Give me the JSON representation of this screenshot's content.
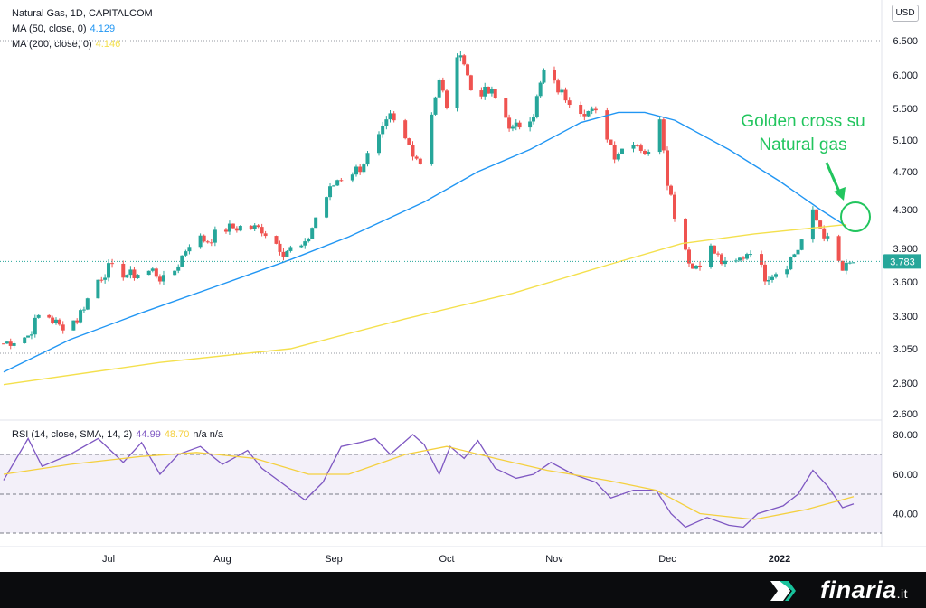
{
  "legend": {
    "title": "Natural Gas, 1D, CAPITALCOM",
    "ma50_label": "MA (50, close, 0)",
    "ma50_value": "4.129",
    "ma200_label": "MA (200, close, 0)",
    "ma200_value": "4.146",
    "rsi_label": "RSI (14, close, SMA, 14, 2)",
    "rsi_value": "44.99",
    "rsi_sma_value": "48.70",
    "rsi_extra": "n/a  n/a"
  },
  "currency": "USD",
  "brand": {
    "name": "finaria",
    "tld": ".it"
  },
  "colors": {
    "up": "#26a69a",
    "down": "#ef5350",
    "ma50": "#2196f3",
    "ma200": "#f4e04d",
    "rsi": "#7e57c2",
    "rsi_sma": "#f4d03f",
    "annotation": "#22c55e"
  },
  "annotation": {
    "line1": "Golden cross su",
    "line2": "Natural gas"
  },
  "chart_data": [
    {
      "type": "candlestick",
      "title": "Natural Gas, 1D, CAPITALCOM",
      "y_ticks": [
        "6.500",
        "6.000",
        "5.500",
        "5.100",
        "4.700",
        "4.300",
        "3.900",
        "3.600",
        "3.300",
        "3.050",
        "2.800",
        "2.600"
      ],
      "x_ticks": [
        "Jul",
        "Aug",
        "Sep",
        "Oct",
        "Nov",
        "Dec",
        "2022"
      ],
      "last_price": "3.783",
      "close_path": [
        {
          "date": "2021-06-01",
          "close": 3.09
        },
        {
          "date": "2021-06-08",
          "close": 3.15
        },
        {
          "date": "2021-06-12",
          "close": 3.35
        },
        {
          "date": "2021-06-17",
          "close": 3.22
        },
        {
          "date": "2021-06-22",
          "close": 3.28
        },
        {
          "date": "2021-06-28",
          "close": 3.62
        },
        {
          "date": "2021-07-01",
          "close": 3.72
        },
        {
          "date": "2021-07-07",
          "close": 3.66
        },
        {
          "date": "2021-07-13",
          "close": 3.7
        },
        {
          "date": "2021-07-17",
          "close": 3.58
        },
        {
          "date": "2021-07-24",
          "close": 4.02
        },
        {
          "date": "2021-07-28",
          "close": 3.98
        },
        {
          "date": "2021-08-01",
          "close": 4.1
        },
        {
          "date": "2021-08-06",
          "close": 4.12
        },
        {
          "date": "2021-08-12",
          "close": 4.1
        },
        {
          "date": "2021-08-18",
          "close": 3.88
        },
        {
          "date": "2021-08-24",
          "close": 3.92
        },
        {
          "date": "2021-08-28",
          "close": 4.32
        },
        {
          "date": "2021-09-02",
          "close": 4.62
        },
        {
          "date": "2021-09-08",
          "close": 4.75
        },
        {
          "date": "2021-09-13",
          "close": 5.12
        },
        {
          "date": "2021-09-16",
          "close": 5.38
        },
        {
          "date": "2021-09-20",
          "close": 5.1
        },
        {
          "date": "2021-09-24",
          "close": 4.82
        },
        {
          "date": "2021-09-29",
          "close": 5.9
        },
        {
          "date": "2021-10-01",
          "close": 5.55
        },
        {
          "date": "2021-10-05",
          "close": 6.38
        },
        {
          "date": "2021-10-08",
          "close": 5.78
        },
        {
          "date": "2021-10-14",
          "close": 5.72
        },
        {
          "date": "2021-10-20",
          "close": 5.22
        },
        {
          "date": "2021-10-26",
          "close": 5.45
        },
        {
          "date": "2021-10-29",
          "close": 6.05
        },
        {
          "date": "2021-11-03",
          "close": 5.72
        },
        {
          "date": "2021-11-08",
          "close": 5.5
        },
        {
          "date": "2021-11-13",
          "close": 5.4
        },
        {
          "date": "2021-11-17",
          "close": 4.92
        },
        {
          "date": "2021-11-22",
          "close": 5.1
        },
        {
          "date": "2021-11-27",
          "close": 4.86
        },
        {
          "date": "2021-11-29",
          "close": 5.42
        },
        {
          "date": "2021-12-01",
          "close": 4.62
        },
        {
          "date": "2021-12-04",
          "close": 4.08
        },
        {
          "date": "2021-12-08",
          "close": 3.72
        },
        {
          "date": "2021-12-13",
          "close": 3.9
        },
        {
          "date": "2021-12-18",
          "close": 3.7
        },
        {
          "date": "2021-12-24",
          "close": 3.9
        },
        {
          "date": "2021-12-28",
          "close": 3.65
        },
        {
          "date": "2022-01-02",
          "close": 3.72
        },
        {
          "date": "2022-01-06",
          "close": 3.9
        },
        {
          "date": "2022-01-10",
          "close": 4.25
        },
        {
          "date": "2022-01-13",
          "close": 4.05
        },
        {
          "date": "2022-01-18",
          "close": 3.7
        },
        {
          "date": "2022-01-21",
          "close": 3.78
        }
      ],
      "series": [
        {
          "name": "MA (50, close, 0)",
          "values": [
            {
              "date": "2021-06-01",
              "value": 2.88
            },
            {
              "date": "2021-06-20",
              "value": 3.12
            },
            {
              "date": "2021-07-10",
              "value": 3.33
            },
            {
              "date": "2021-08-01",
              "value": 3.58
            },
            {
              "date": "2021-08-20",
              "value": 3.8
            },
            {
              "date": "2021-09-05",
              "value": 4.02
            },
            {
              "date": "2021-09-25",
              "value": 4.38
            },
            {
              "date": "2021-10-10",
              "value": 4.7
            },
            {
              "date": "2021-10-25",
              "value": 4.98
            },
            {
              "date": "2021-11-08",
              "value": 5.32
            },
            {
              "date": "2021-11-18",
              "value": 5.45
            },
            {
              "date": "2021-11-25",
              "value": 5.45
            },
            {
              "date": "2021-12-03",
              "value": 5.35
            },
            {
              "date": "2021-12-18",
              "value": 4.98
            },
            {
              "date": "2022-01-01",
              "value": 4.6
            },
            {
              "date": "2022-01-12",
              "value": 4.3
            },
            {
              "date": "2022-01-19",
              "value": 4.13
            }
          ]
        },
        {
          "name": "MA (200, close, 0)",
          "values": [
            {
              "date": "2021-06-01",
              "value": 2.79
            },
            {
              "date": "2021-07-15",
              "value": 2.95
            },
            {
              "date": "2021-08-20",
              "value": 3.05
            },
            {
              "date": "2021-09-20",
              "value": 3.28
            },
            {
              "date": "2021-10-20",
              "value": 3.5
            },
            {
              "date": "2021-11-15",
              "value": 3.75
            },
            {
              "date": "2021-12-05",
              "value": 3.95
            },
            {
              "date": "2021-12-25",
              "value": 4.05
            },
            {
              "date": "2022-01-19",
              "value": 4.146
            }
          ]
        }
      ]
    },
    {
      "type": "line",
      "title": "RSI (14, close, SMA, 14, 2)",
      "y_ticks": [
        "80.00",
        "60.00",
        "40.00"
      ],
      "bands": [
        30,
        50,
        70
      ],
      "series": [
        {
          "name": "RSI",
          "values": [
            {
              "date": "2021-06-01",
              "value": 57
            },
            {
              "date": "2021-06-08",
              "value": 78
            },
            {
              "date": "2021-06-12",
              "value": 64
            },
            {
              "date": "2021-06-20",
              "value": 70
            },
            {
              "date": "2021-06-28",
              "value": 78
            },
            {
              "date": "2021-07-05",
              "value": 66
            },
            {
              "date": "2021-07-10",
              "value": 76
            },
            {
              "date": "2021-07-15",
              "value": 60
            },
            {
              "date": "2021-07-20",
              "value": 70
            },
            {
              "date": "2021-07-26",
              "value": 74
            },
            {
              "date": "2021-08-01",
              "value": 65
            },
            {
              "date": "2021-08-08",
              "value": 72
            },
            {
              "date": "2021-08-12",
              "value": 63
            },
            {
              "date": "2021-08-18",
              "value": 55
            },
            {
              "date": "2021-08-24",
              "value": 47
            },
            {
              "date": "2021-08-29",
              "value": 56
            },
            {
              "date": "2021-09-03",
              "value": 74
            },
            {
              "date": "2021-09-08",
              "value": 76
            },
            {
              "date": "2021-09-12",
              "value": 78
            },
            {
              "date": "2021-09-16",
              "value": 70
            },
            {
              "date": "2021-09-22",
              "value": 83
            },
            {
              "date": "2021-09-25",
              "value": 75
            },
            {
              "date": "2021-09-29",
              "value": 60
            },
            {
              "date": "2021-10-02",
              "value": 74
            },
            {
              "date": "2021-10-06",
              "value": 68
            },
            {
              "date": "2021-10-10",
              "value": 77
            },
            {
              "date": "2021-10-15",
              "value": 63
            },
            {
              "date": "2021-10-21",
              "value": 58
            },
            {
              "date": "2021-10-26",
              "value": 60
            },
            {
              "date": "2021-10-31",
              "value": 66
            },
            {
              "date": "2021-11-06",
              "value": 60
            },
            {
              "date": "2021-11-12",
              "value": 56
            },
            {
              "date": "2021-11-16",
              "value": 48
            },
            {
              "date": "2021-11-22",
              "value": 52
            },
            {
              "date": "2021-11-28",
              "value": 52
            },
            {
              "date": "2021-12-02",
              "value": 40
            },
            {
              "date": "2021-12-06",
              "value": 33
            },
            {
              "date": "2021-12-12",
              "value": 38
            },
            {
              "date": "2021-12-18",
              "value": 34
            },
            {
              "date": "2021-12-22",
              "value": 33
            },
            {
              "date": "2021-12-26",
              "value": 40
            },
            {
              "date": "2022-01-02",
              "value": 44
            },
            {
              "date": "2022-01-06",
              "value": 50
            },
            {
              "date": "2022-01-10",
              "value": 62
            },
            {
              "date": "2022-01-14",
              "value": 54
            },
            {
              "date": "2022-01-18",
              "value": 43
            },
            {
              "date": "2022-01-21",
              "value": 44.99
            }
          ]
        },
        {
          "name": "SMA",
          "values": [
            {
              "date": "2021-06-01",
              "value": 60
            },
            {
              "date": "2021-06-20",
              "value": 65
            },
            {
              "date": "2021-07-10",
              "value": 69
            },
            {
              "date": "2021-07-25",
              "value": 71
            },
            {
              "date": "2021-08-10",
              "value": 68
            },
            {
              "date": "2021-08-25",
              "value": 60
            },
            {
              "date": "2021-09-05",
              "value": 60
            },
            {
              "date": "2021-09-20",
              "value": 70
            },
            {
              "date": "2021-10-01",
              "value": 74
            },
            {
              "date": "2021-10-15",
              "value": 68
            },
            {
              "date": "2021-10-30",
              "value": 62
            },
            {
              "date": "2021-11-15",
              "value": 57
            },
            {
              "date": "2021-11-28",
              "value": 52
            },
            {
              "date": "2021-12-10",
              "value": 40
            },
            {
              "date": "2021-12-25",
              "value": 37
            },
            {
              "date": "2022-01-08",
              "value": 42
            },
            {
              "date": "2022-01-21",
              "value": 48.7
            }
          ]
        }
      ]
    }
  ]
}
